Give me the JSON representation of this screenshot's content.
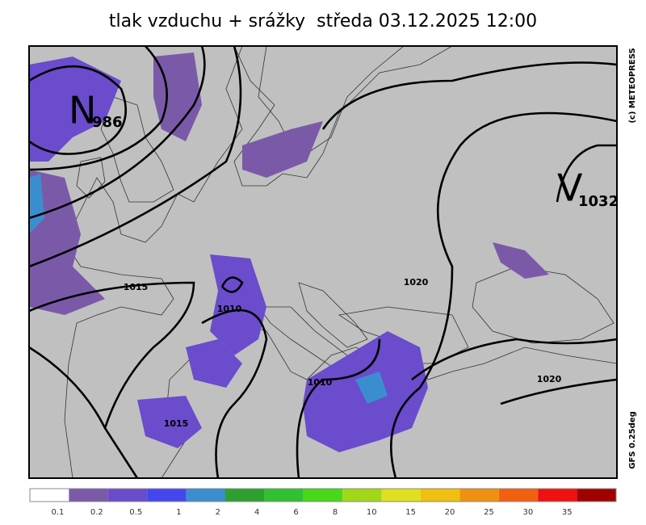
{
  "title": "tlak vzduchu + srážky  středa 03.12.2025 12:00",
  "pressure_centers": [
    {
      "letter": "N",
      "value": "986"
    },
    {
      "letter": "V",
      "value": "1032"
    }
  ],
  "isobar_labels": [
    "1015",
    "1010",
    "1020",
    "1010",
    "1015",
    "1020"
  ],
  "credit": "(c) METEOPRESS",
  "model": "GFS 0.25deg",
  "legend": {
    "colors": [
      "#ffffff",
      "#7a5aa8",
      "#6a4ccc",
      "#4646ee",
      "#3a8ed0",
      "#2ea030",
      "#30c030",
      "#48d818",
      "#a0d818",
      "#e0e020",
      "#f0c010",
      "#f09010",
      "#f06010",
      "#f01010",
      "#a00000"
    ],
    "labels": [
      "0.1",
      "0.2",
      "0.5",
      "1",
      "2",
      "4",
      "6",
      "8",
      "10",
      "15",
      "20",
      "25",
      "30",
      "35"
    ]
  }
}
